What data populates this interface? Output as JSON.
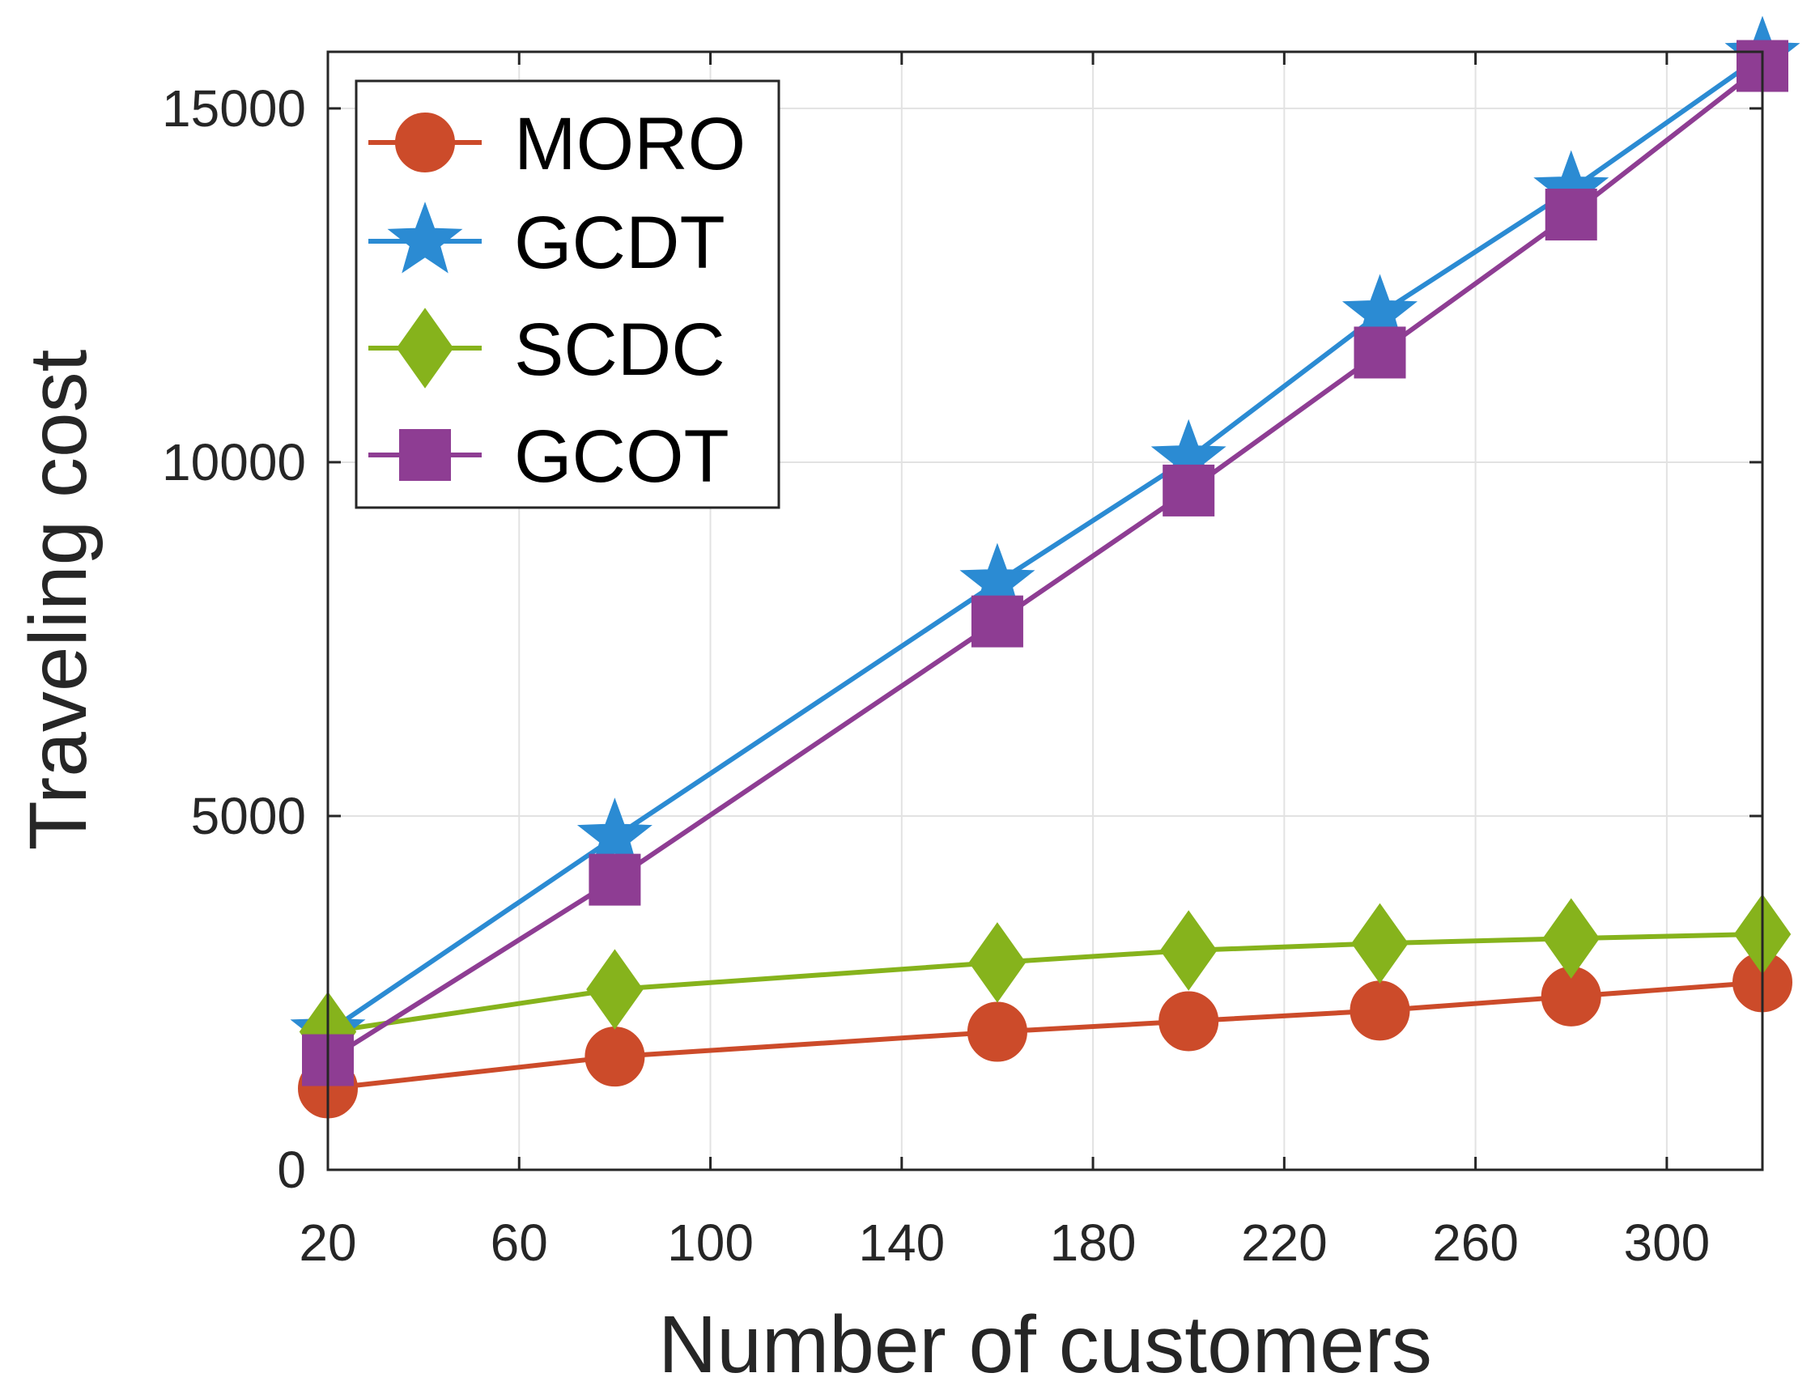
{
  "chart_data": {
    "type": "line",
    "title": "",
    "xlabel": "Number of customers",
    "ylabel": "Traveling cost",
    "xlim": [
      20,
      320
    ],
    "ylim": [
      0,
      15800
    ],
    "xticks": [
      20,
      60,
      100,
      140,
      180,
      220,
      260,
      300
    ],
    "yticks": [
      0,
      5000,
      10000,
      15000
    ],
    "grid": true,
    "legend_position": "top-left",
    "x": [
      20,
      80,
      160,
      200,
      240,
      280,
      320
    ],
    "series": [
      {
        "name": "MORO",
        "marker": "circle",
        "color": "#cc4b2a",
        "values": [
          1150,
          1600,
          1950,
          2100,
          2250,
          2450,
          2650
        ]
      },
      {
        "name": "GCDT",
        "marker": "star",
        "color": "#2b8bd3",
        "values": [
          1950,
          4700,
          8300,
          10050,
          12100,
          13850,
          15750
        ]
      },
      {
        "name": "SCDC",
        "marker": "diamond",
        "color": "#86b31c",
        "values": [
          1950,
          2550,
          2930,
          3100,
          3200,
          3270,
          3330
        ]
      },
      {
        "name": "GCOT",
        "marker": "square",
        "color": "#8e3d93",
        "values": [
          1550,
          4100,
          7750,
          9600,
          11550,
          13500,
          15600
        ]
      }
    ]
  }
}
